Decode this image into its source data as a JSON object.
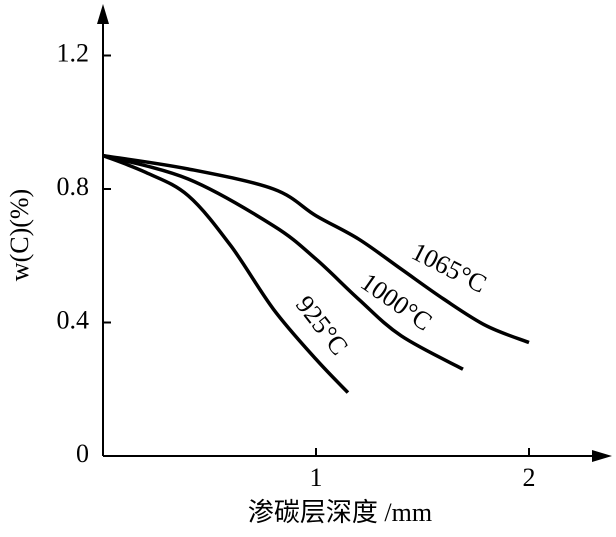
{
  "chart_data": {
    "type": "line",
    "y_label": "w(C)(%)",
    "x_label": "渗碳层深度 /mm",
    "xlim": [
      0,
      2.35
    ],
    "ylim": [
      0,
      1.33
    ],
    "xticks": [
      1,
      2
    ],
    "yticks": [
      0,
      0.4,
      0.8,
      1.2
    ],
    "color": "#000000",
    "series": [
      {
        "name": "1065°C",
        "x": [
          0,
          0.4,
          0.8,
          1.0,
          1.2,
          1.4,
          1.6,
          1.8,
          2.0
        ],
        "values": [
          0.9,
          0.86,
          0.8,
          0.72,
          0.65,
          0.56,
          0.47,
          0.39,
          0.34
        ]
      },
      {
        "name": "1000°C",
        "x": [
          0,
          0.4,
          0.8,
          1.0,
          1.2,
          1.4,
          1.69
        ],
        "values": [
          0.9,
          0.83,
          0.69,
          0.59,
          0.47,
          0.36,
          0.26
        ]
      },
      {
        "name": "925°C",
        "x": [
          0,
          0.2,
          0.4,
          0.6,
          0.8,
          1.0,
          1.15
        ],
        "values": [
          0.9,
          0.85,
          0.78,
          0.63,
          0.44,
          0.29,
          0.19
        ]
      }
    ]
  }
}
